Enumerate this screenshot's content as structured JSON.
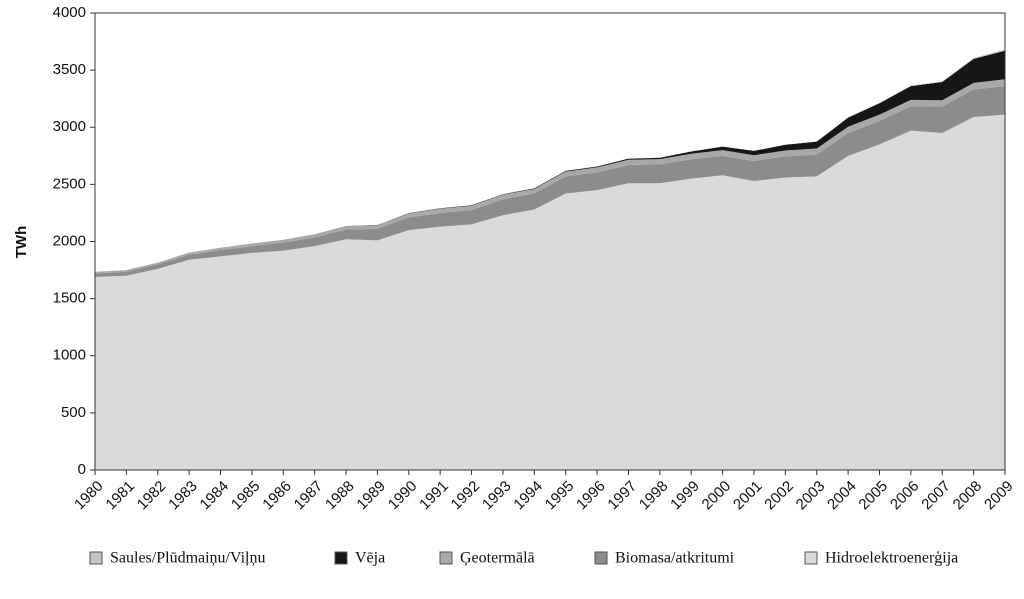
{
  "chart_data": {
    "type": "stacked-area",
    "y_label": "TWh",
    "x": [
      1980,
      1981,
      1982,
      1983,
      1984,
      1985,
      1986,
      1987,
      1988,
      1989,
      1990,
      1991,
      1992,
      1993,
      1994,
      1995,
      1996,
      1997,
      1998,
      1999,
      2000,
      2001,
      2002,
      2003,
      2004,
      2005,
      2006,
      2007,
      2008,
      2009
    ],
    "xlim": [
      1980,
      2009
    ],
    "ylim": [
      0,
      4000
    ],
    "yticks": [
      0,
      500,
      1000,
      1500,
      2000,
      2500,
      3000,
      3500,
      4000
    ],
    "series": [
      {
        "name": "Saules/Plūdmaiņu/Viļņu",
        "color": "#c4c4c4",
        "values": [
          0,
          0,
          0,
          0,
          0,
          0,
          0,
          0,
          0,
          0,
          1,
          1,
          1,
          1,
          1,
          1,
          1,
          1,
          1,
          1,
          2,
          2,
          2,
          2,
          3,
          4,
          5,
          6,
          8,
          12
        ]
      },
      {
        "name": "Vēja",
        "color": "#161616",
        "values": [
          0,
          0,
          0,
          0,
          0,
          0,
          0,
          0,
          1,
          2,
          3,
          3,
          4,
          4,
          5,
          6,
          8,
          10,
          12,
          20,
          30,
          38,
          50,
          60,
          80,
          100,
          120,
          160,
          210,
          250
        ]
      },
      {
        "name": "Ģeotermālā",
        "color": "#a8a8a8",
        "values": [
          15,
          15,
          15,
          18,
          20,
          22,
          25,
          28,
          30,
          32,
          35,
          38,
          38,
          40,
          40,
          42,
          44,
          45,
          46,
          48,
          50,
          50,
          52,
          54,
          54,
          55,
          55,
          56,
          58,
          60
        ]
      },
      {
        "name": "Biomasa/atkritumi",
        "color": "#8c8c8c",
        "values": [
          30,
          35,
          40,
          45,
          55,
          60,
          70,
          75,
          85,
          100,
          110,
          120,
          125,
          140,
          140,
          150,
          155,
          160,
          165,
          170,
          170,
          175,
          185,
          190,
          200,
          205,
          215,
          230,
          240,
          250
        ]
      },
      {
        "name": "Hidroelektroenerģija",
        "color": "#dadada",
        "values": [
          1690,
          1700,
          1760,
          1840,
          1870,
          1900,
          1920,
          1960,
          2020,
          2010,
          2100,
          2130,
          2150,
          2230,
          2280,
          2420,
          2450,
          2510,
          2510,
          2550,
          2580,
          2530,
          2560,
          2570,
          2750,
          2850,
          2970,
          2950,
          3090,
          3110
        ]
      }
    ]
  }
}
